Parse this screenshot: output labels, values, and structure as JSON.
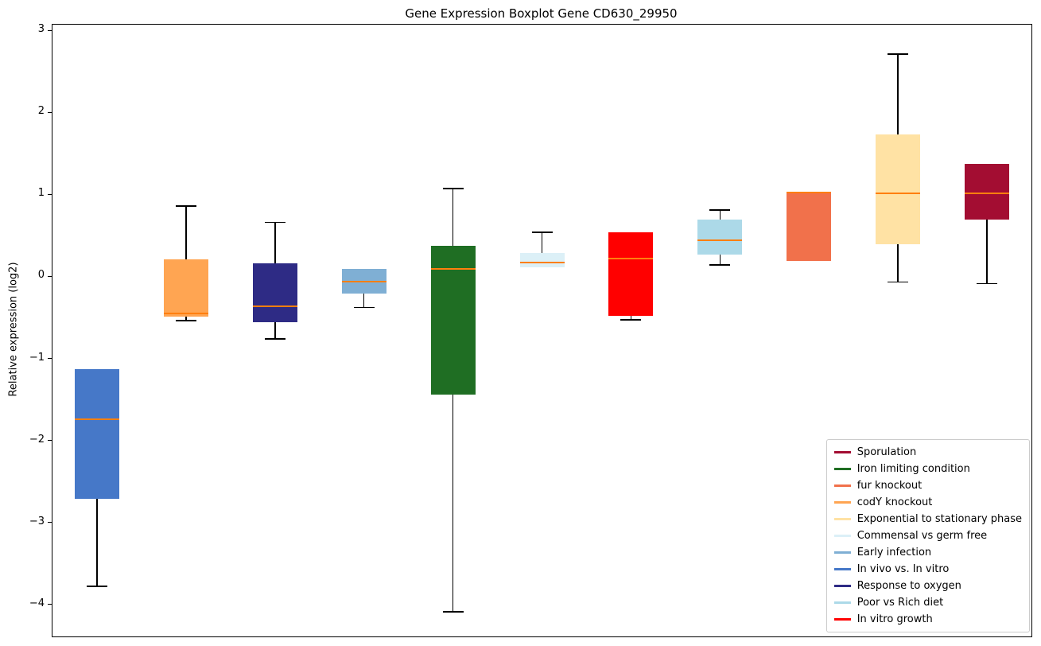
{
  "chart_data": {
    "type": "boxplot",
    "title": "Gene Expression Boxplot Gene CD630_29950",
    "xlabel": "",
    "ylabel": "Relative expression (log2)",
    "ylim": [
      -4.38,
      3.08
    ],
    "yticks": [
      3,
      2,
      1,
      0,
      -1,
      -2,
      -3,
      -4
    ],
    "grid": false,
    "median_color": "#ff7f0e",
    "series": [
      {
        "name": "In vivo vs. In vitro",
        "color": "#4678C8",
        "q1": -2.7,
        "median": -1.73,
        "q3": -1.12,
        "whisker_low": -3.77,
        "whisker_high": -1.12
      },
      {
        "name": "codY knockout",
        "color": "#FFA552",
        "q1": -0.48,
        "median": -0.44,
        "q3": 0.22,
        "whisker_low": -0.53,
        "whisker_high": 0.87
      },
      {
        "name": "Response to oxygen",
        "color": "#2E2B85",
        "q1": -0.55,
        "median": -0.35,
        "q3": 0.17,
        "whisker_low": -0.75,
        "whisker_high": 0.67
      },
      {
        "name": "Early infection",
        "color": "#7FAFD4",
        "q1": -0.2,
        "median": -0.05,
        "q3": 0.1,
        "whisker_low": -0.37,
        "whisker_high": 0.1
      },
      {
        "name": "Iron limiting condition",
        "color": "#1F6E23",
        "q1": -1.43,
        "median": 0.1,
        "q3": 0.38,
        "whisker_low": -4.08,
        "whisker_high": 1.08
      },
      {
        "name": "Commensal vs germ free",
        "color": "#DCF0F7",
        "q1": 0.12,
        "median": 0.18,
        "q3": 0.3,
        "whisker_low": 0.12,
        "whisker_high": 0.55
      },
      {
        "name": "In vitro growth",
        "color": "#FF0000",
        "q1": -0.47,
        "median": 0.23,
        "q3": 0.55,
        "whisker_low": -0.52,
        "whisker_high": 0.55
      },
      {
        "name": "Poor vs Rich diet",
        "color": "#ACD9E8",
        "q1": 0.28,
        "median": 0.45,
        "q3": 0.7,
        "whisker_low": 0.15,
        "whisker_high": 0.82
      },
      {
        "name": "fur knockout",
        "color": "#F1714B",
        "q1": 0.2,
        "median": 1.03,
        "q3": 1.03,
        "whisker_low": 0.2,
        "whisker_high": 1.03
      },
      {
        "name": "Exponential to stationary phase",
        "color": "#FFE2A4",
        "q1": 0.4,
        "median": 1.02,
        "q3": 1.74,
        "whisker_low": -0.06,
        "whisker_high": 2.72
      },
      {
        "name": "Sporulation",
        "color": "#A30D32",
        "q1": 0.7,
        "median": 1.02,
        "q3": 1.38,
        "whisker_low": -0.08,
        "whisker_high": 1.38
      }
    ],
    "legend": {
      "position": "lower right",
      "items": [
        {
          "label": "Sporulation",
          "color": "#A30D32"
        },
        {
          "label": "Iron limiting condition",
          "color": "#1F6E23"
        },
        {
          "label": "fur knockout",
          "color": "#F1714B"
        },
        {
          "label": "codY knockout",
          "color": "#FFA552"
        },
        {
          "label": "Exponential to stationary phase",
          "color": "#FFE2A4"
        },
        {
          "label": "Commensal vs germ free",
          "color": "#DCF0F7"
        },
        {
          "label": "Early infection",
          "color": "#7FAFD4"
        },
        {
          "label": "In vivo vs. In vitro",
          "color": "#4678C8"
        },
        {
          "label": "Response to oxygen",
          "color": "#2E2B85"
        },
        {
          "label": "Poor vs Rich diet",
          "color": "#ACD9E8"
        },
        {
          "label": "In vitro growth",
          "color": "#FF0000"
        }
      ]
    }
  }
}
